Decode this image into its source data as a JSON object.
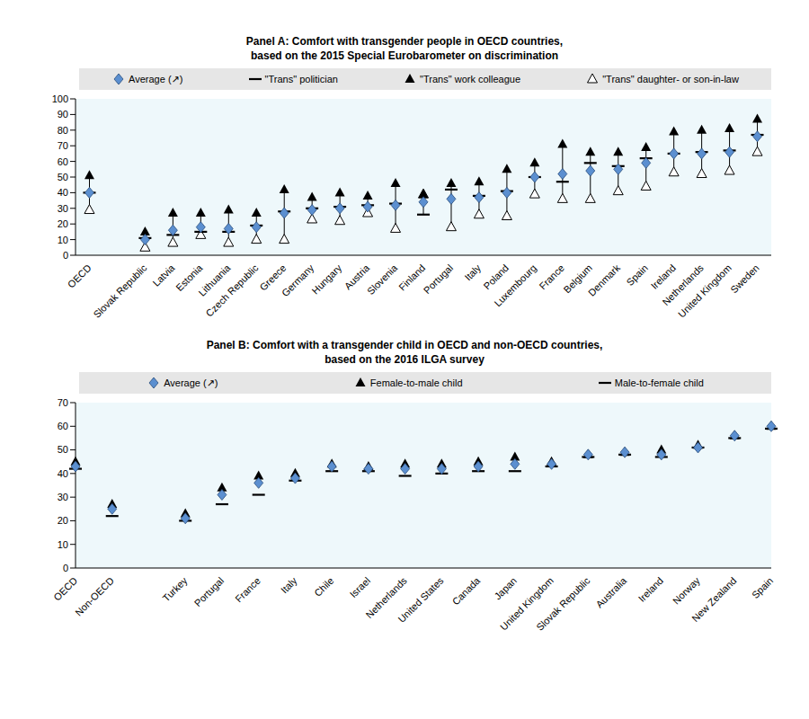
{
  "chart_data": [
    {
      "type": "scatter",
      "title": "Panel A: Comfort with transgender people in OECD countries,\nbased on the 2015 Special Eurobarometer on discrimination",
      "legend": "top",
      "grid": false,
      "categories": [
        "OECD",
        null,
        "Slovak Republic",
        "Latvia",
        "Estonia",
        "Lithuania",
        "Czech Republic",
        "Greece",
        "Germany",
        "Hungary",
        "Austria",
        "Slovenia",
        "Finland",
        "Portugal",
        "Italy",
        "Poland",
        "Luxembourg",
        "France",
        "Belgium",
        "Denmark",
        "Spain",
        "Ireland",
        "Netherlands",
        "United Kingdom",
        "Sweden"
      ],
      "series": [
        {
          "name": "Average (↗)",
          "color": "#5b8fd0",
          "marker": "diamond",
          "values": [
            40,
            null,
            10,
            16,
            18,
            17,
            18,
            27,
            29,
            30,
            31,
            32,
            34,
            36,
            37,
            40,
            50,
            52,
            54,
            55,
            59,
            65,
            65,
            66,
            76
          ]
        },
        {
          "name": "\"Trans\" politician",
          "color": "#000000",
          "marker": "dash",
          "values": [
            40,
            null,
            11,
            13,
            15,
            15,
            19,
            28,
            30,
            31,
            32,
            33,
            26,
            42,
            38,
            41,
            50,
            47,
            59,
            57,
            62,
            65,
            66,
            67,
            77
          ]
        },
        {
          "name": "\"Trans\" work colleague",
          "color": "#000000",
          "marker": "triangle",
          "values": [
            51,
            null,
            15,
            27,
            27,
            29,
            27,
            42,
            37,
            40,
            38,
            46,
            39,
            46,
            47,
            55,
            59,
            71,
            66,
            66,
            69,
            79,
            80,
            81,
            87
          ]
        },
        {
          "name": "\"Trans\" daughter- or son-in-law",
          "color": "#000000",
          "marker": "triangle-open",
          "values": [
            29,
            null,
            5,
            8,
            13,
            8,
            10,
            10,
            23,
            22,
            27,
            17,
            39,
            18,
            26,
            25,
            39,
            36,
            36,
            41,
            44,
            53,
            52,
            54,
            66
          ]
        }
      ],
      "ylim": [
        0,
        100
      ],
      "yticks": [
        0,
        10,
        20,
        30,
        40,
        50,
        60,
        70,
        80,
        90,
        100
      ]
    },
    {
      "type": "scatter",
      "title": "Panel B: Comfort with a transgender child in OECD and non-OECD countries,\nbased on the 2016 ILGA survey",
      "legend": "top",
      "grid": false,
      "categories": [
        "OECD",
        "Non-OECD",
        null,
        "Turkey",
        "Portugal",
        "France",
        "Italy",
        "Chile",
        "Israel",
        "Netherlands",
        "United States",
        "Canada",
        "Japan",
        "United Kingdom",
        "Slovak Republic",
        "Australia",
        "Ireland",
        "Norway",
        "New Zealand",
        "Spain"
      ],
      "series": [
        {
          "name": "Average (↗)",
          "color": "#5b8fd0",
          "marker": "diamond",
          "values": [
            43,
            25,
            null,
            21,
            31,
            36,
            38,
            43,
            42,
            42,
            42,
            43,
            44,
            44,
            48,
            49,
            48,
            51,
            56,
            60
          ]
        },
        {
          "name": "Female-to-male child",
          "color": "#000000",
          "marker": "triangle",
          "values": [
            45,
            27,
            null,
            23,
            34,
            39,
            40,
            44,
            43,
            44,
            44,
            45,
            47,
            45,
            48,
            49,
            50,
            52,
            56,
            60
          ]
        },
        {
          "name": "Male-to-female child",
          "color": "#000000",
          "marker": "dash",
          "values": [
            42,
            22,
            null,
            20,
            27,
            31,
            37,
            41,
            41,
            39,
            40,
            41,
            41,
            43,
            47,
            48,
            47,
            51,
            55,
            59
          ]
        }
      ],
      "ylim": [
        0,
        70
      ],
      "yticks": [
        0,
        10,
        20,
        30,
        40,
        50,
        60,
        70
      ]
    }
  ]
}
